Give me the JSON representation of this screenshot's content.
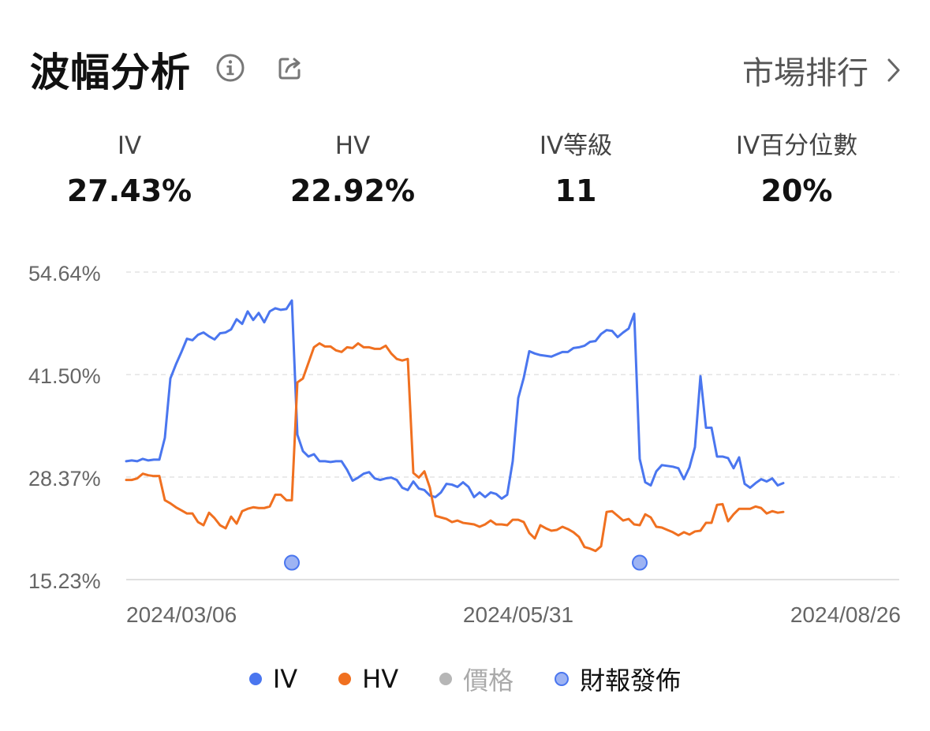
{
  "header": {
    "title": "波幅分析",
    "info_icon": "info-icon",
    "share_icon": "share-icon",
    "rank_label": "市場排行",
    "rank_icon": "chevron-right-icon"
  },
  "stats": [
    {
      "label": "IV",
      "value": "27.43%"
    },
    {
      "label": "HV",
      "value": "22.92%"
    },
    {
      "label": "IV等級",
      "value": "11"
    },
    {
      "label": "IV百分位數",
      "value": "20%"
    }
  ],
  "colors": {
    "iv": "#4a76ef",
    "hv": "#f07020",
    "price": "#b6b6b6",
    "earnings_fill": "#9db3f3",
    "earnings_stroke": "#4a76ef"
  },
  "legend": [
    {
      "label": "IV",
      "color": "#4a76ef",
      "style": "solid",
      "muted": false
    },
    {
      "label": "HV",
      "color": "#f07020",
      "style": "solid",
      "muted": false
    },
    {
      "label": "價格",
      "color": "#b6b6b6",
      "style": "solid",
      "muted": true
    },
    {
      "label": "財報發佈",
      "color": "#9db3f3",
      "style": "ring",
      "muted": false
    }
  ],
  "chart_data": {
    "type": "line",
    "y_ticks": [
      "54.64%",
      "41.50%",
      "28.37%",
      "15.23%"
    ],
    "ylim": [
      15.23,
      54.64
    ],
    "x_ticks": [
      "2024/03/06",
      "2024/05/31",
      "2024/08/26"
    ],
    "xlim": [
      0,
      140
    ],
    "grid": true,
    "legend_position": "bottom",
    "series": [
      {
        "name": "IV",
        "values": [
          30.4,
          30.5,
          30.4,
          30.7,
          30.5,
          30.6,
          30.6,
          33.4,
          41.0,
          42.8,
          44.4,
          46.1,
          45.9,
          46.6,
          46.9,
          46.4,
          46.0,
          46.8,
          46.9,
          47.3,
          48.6,
          48.0,
          49.6,
          48.5,
          49.4,
          48.2,
          49.6,
          50.0,
          49.8,
          49.9,
          51.0,
          33.8,
          31.7,
          31.0,
          31.3,
          30.4,
          30.4,
          30.3,
          30.4,
          30.4,
          29.3,
          27.9,
          28.3,
          28.8,
          29.0,
          28.2,
          28.0,
          28.2,
          28.3,
          28.0,
          27.0,
          26.7,
          27.8,
          26.9,
          26.7,
          26.0,
          25.8,
          26.4,
          27.5,
          27.4,
          27.1,
          27.7,
          27.1,
          25.8,
          26.4,
          25.8,
          26.4,
          26.2,
          25.6,
          26.1,
          30.4,
          38.5,
          41.1,
          44.5,
          44.2,
          44.0,
          43.9,
          43.8,
          44.1,
          44.4,
          44.4,
          44.9,
          45.0,
          45.2,
          45.7,
          45.8,
          46.7,
          47.2,
          47.1,
          46.3,
          46.9,
          47.4,
          49.3,
          30.7,
          27.7,
          27.3,
          29.1,
          29.9,
          29.8,
          29.7,
          29.5,
          28.1,
          29.6,
          32.2,
          41.3,
          34.7,
          34.7,
          31.0,
          31.0,
          30.8,
          29.5,
          30.9,
          27.5,
          27.0,
          27.6,
          28.1,
          27.8,
          28.2,
          27.3,
          27.6
        ]
      },
      {
        "name": "HV",
        "values": [
          28.0,
          28.0,
          28.2,
          28.8,
          28.6,
          28.5,
          28.5,
          25.4,
          25.0,
          24.5,
          24.1,
          23.7,
          23.7,
          22.6,
          22.2,
          23.8,
          23.1,
          22.2,
          21.8,
          23.3,
          22.4,
          24.0,
          24.3,
          24.5,
          24.4,
          24.4,
          24.6,
          26.1,
          26.1,
          25.4,
          25.4,
          40.5,
          41.0,
          43.0,
          45.0,
          45.5,
          45.1,
          45.1,
          44.6,
          44.4,
          45.0,
          44.9,
          45.5,
          45.0,
          45.0,
          44.8,
          44.8,
          45.2,
          44.2,
          43.5,
          43.3,
          43.5,
          28.9,
          28.3,
          29.1,
          27.0,
          23.4,
          23.2,
          23.0,
          22.6,
          22.8,
          22.5,
          22.4,
          22.3,
          22.0,
          22.3,
          22.8,
          22.3,
          22.3,
          22.2,
          22.9,
          22.9,
          22.6,
          21.2,
          20.5,
          22.2,
          21.8,
          21.5,
          21.6,
          22.0,
          21.7,
          21.3,
          20.7,
          19.4,
          19.2,
          18.9,
          19.5,
          23.9,
          24.0,
          23.4,
          22.8,
          23.0,
          22.3,
          22.2,
          23.6,
          23.2,
          22.0,
          21.9,
          21.6,
          21.3,
          20.9,
          21.3,
          21.0,
          21.4,
          21.5,
          22.5,
          22.5,
          24.8,
          24.9,
          22.7,
          23.6,
          24.3,
          24.3,
          24.3,
          24.6,
          24.4,
          23.7,
          24.0,
          23.8,
          23.9
        ]
      }
    ],
    "earnings_markers": [
      {
        "x": 30,
        "y": 17.4
      },
      {
        "x": 93,
        "y": 17.4
      }
    ]
  }
}
